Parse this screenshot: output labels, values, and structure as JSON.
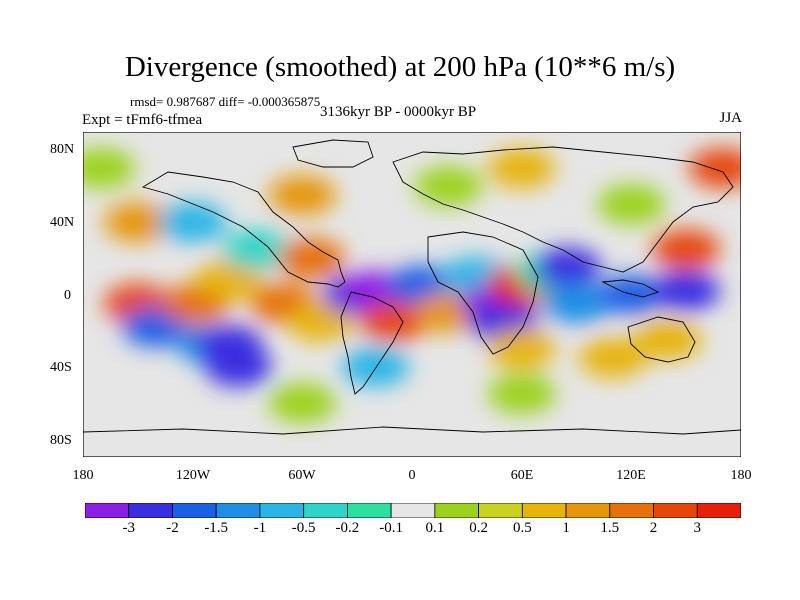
{
  "title": "Divergence (smoothed) at 200 hPa (10**6 m/s)",
  "stats": "rmsd= 0.987687  diff= -0.000365875",
  "experiment": "Expt = tFmf6-tfmea",
  "period": "3136kyr BP - 0000kyr BP",
  "season": "JJA",
  "lat_labels": [
    "80N",
    "40N",
    "0",
    "40S",
    "80S"
  ],
  "lon_labels": [
    "180",
    "120W",
    "60W",
    "0",
    "60E",
    "120E",
    "180"
  ],
  "colorbar": {
    "colors": [
      "#8b1fe6",
      "#3a2fe0",
      "#1a5fe6",
      "#1f8fe6",
      "#29b5e6",
      "#2ed4c8",
      "#2ee0a0",
      "#e6e6e6",
      "#9bd21e",
      "#c8d21e",
      "#e6b40a",
      "#e6960a",
      "#e6700a",
      "#e6460a",
      "#e61e0a"
    ],
    "labels": [
      "-3",
      "-2",
      "-1.5",
      "-1",
      "-0.5",
      "-0.2",
      "-0.1",
      "0.1",
      "0.2",
      "0.5",
      "1",
      "1.5",
      "2",
      "3"
    ]
  },
  "map": {
    "background": "#e6e6e6",
    "field": [
      {
        "lon": -150,
        "lat": -5,
        "color": "#e6460a"
      },
      {
        "lon": -140,
        "lat": -18,
        "color": "#1a5fe6"
      },
      {
        "lon": -118,
        "lat": -5,
        "color": "#e6700a"
      },
      {
        "lon": -110,
        "lat": -28,
        "color": "#1f8fe6"
      },
      {
        "lon": -100,
        "lat": 8,
        "color": "#e6b40a"
      },
      {
        "lon": -95,
        "lat": -40,
        "color": "#3a2fe0"
      },
      {
        "lon": -100,
        "lat": -28,
        "color": "#3a2fe0"
      },
      {
        "lon": -85,
        "lat": 25,
        "color": "#2ed4c8"
      },
      {
        "lon": -70,
        "lat": -5,
        "color": "#e6700a"
      },
      {
        "lon": -55,
        "lat": 20,
        "color": "#e6700a"
      },
      {
        "lon": -50,
        "lat": -15,
        "color": "#e6b40a"
      },
      {
        "lon": -30,
        "lat": 0,
        "color": "#3a2fe0"
      },
      {
        "lon": -20,
        "lat": 2,
        "color": "#8b1fe6"
      },
      {
        "lon": -10,
        "lat": -15,
        "color": "#e6460a"
      },
      {
        "lon": 5,
        "lat": 5,
        "color": "#1a5fe6"
      },
      {
        "lon": 20,
        "lat": -10,
        "color": "#e6960a"
      },
      {
        "lon": 35,
        "lat": 10,
        "color": "#29b5e6"
      },
      {
        "lon": 45,
        "lat": -5,
        "color": "#8b1fe6"
      },
      {
        "lon": 50,
        "lat": -15,
        "color": "#3a2fe0"
      },
      {
        "lon": 60,
        "lat": 5,
        "color": "#e61e0a"
      },
      {
        "lon": 75,
        "lat": 12,
        "color": "#2ee0a0"
      },
      {
        "lon": 85,
        "lat": 15,
        "color": "#3a2fe0"
      },
      {
        "lon": 90,
        "lat": -5,
        "color": "#1f8fe6"
      },
      {
        "lon": 120,
        "lat": 0,
        "color": "#1a5fe6"
      },
      {
        "lon": 150,
        "lat": 2,
        "color": "#3a2fe0"
      },
      {
        "lon": 150,
        "lat": 25,
        "color": "#e6460a"
      },
      {
        "lon": 140,
        "lat": -25,
        "color": "#e6b40a"
      },
      {
        "lon": 110,
        "lat": -35,
        "color": "#e6b40a"
      },
      {
        "lon": 60,
        "lat": -30,
        "color": "#e6b40a"
      },
      {
        "lon": -20,
        "lat": -40,
        "color": "#29b5e6"
      },
      {
        "lon": -150,
        "lat": 40,
        "color": "#e6960a"
      },
      {
        "lon": -120,
        "lat": 40,
        "color": "#29b5e6"
      },
      {
        "lon": -60,
        "lat": 55,
        "color": "#e6960a"
      },
      {
        "lon": 20,
        "lat": 60,
        "color": "#9bd21e"
      },
      {
        "lon": 60,
        "lat": 70,
        "color": "#e6b40a"
      },
      {
        "lon": 120,
        "lat": 50,
        "color": "#9bd21e"
      },
      {
        "lon": 170,
        "lat": 70,
        "color": "#e6460a"
      },
      {
        "lon": -170,
        "lat": 70,
        "color": "#9bd21e"
      },
      {
        "lon": -60,
        "lat": -60,
        "color": "#9bd21e"
      },
      {
        "lon": 60,
        "lat": -55,
        "color": "#9bd21e"
      }
    ]
  }
}
